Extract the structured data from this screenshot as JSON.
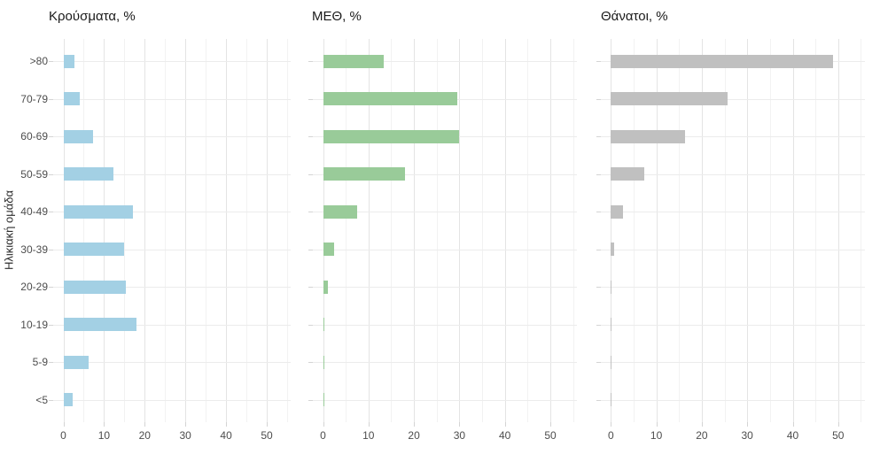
{
  "chart_data": {
    "type": "bar",
    "orientation": "horizontal",
    "ylabel": "Ηλικιακή ομάδα",
    "categories": [
      ">80",
      "70-79",
      "60-69",
      "50-59",
      "40-49",
      "30-39",
      "20-29",
      "10-19",
      "5-9",
      "<5"
    ],
    "x_ticks": [
      "0",
      "10",
      "20",
      "30",
      "40",
      "50"
    ],
    "xlim": [
      0,
      55
    ],
    "grid": "vertical major every 10 + minor every 5, horizontal at each category",
    "legend_position": "none",
    "panels": [
      {
        "title": "Κρούσματα, %",
        "color": "#a3d0e4",
        "values": [
          2.8,
          4.1,
          7.3,
          12.4,
          17.0,
          15.0,
          15.4,
          17.9,
          6.2,
          2.2
        ]
      },
      {
        "title": "ΜΕΘ, %",
        "color": "#99cb99",
        "values": [
          13.3,
          29.5,
          30.0,
          18.0,
          7.5,
          2.4,
          1.0,
          0.3,
          0.1,
          0.2
        ]
      },
      {
        "title": "Θάνατοι, %",
        "color": "#c0c0c0",
        "values": [
          48.8,
          25.7,
          16.3,
          7.3,
          2.6,
          0.8,
          0.1,
          0.2,
          0.05,
          0.1
        ]
      }
    ],
    "style": {
      "bar_colors": {
        "cases": "#a3d0e4",
        "icu": "#99cb99",
        "deaths": "#c0c0c0"
      },
      "grid_major_color": "#e4e4e4",
      "grid_minor_color": "#f2f2f2",
      "grid_horizontal_color": "#ececec",
      "tick_color": "#d4d4d4",
      "axis_text_color": "#4d4d4d",
      "title_color": "#1a1a1a",
      "background": "#ffffff"
    }
  }
}
